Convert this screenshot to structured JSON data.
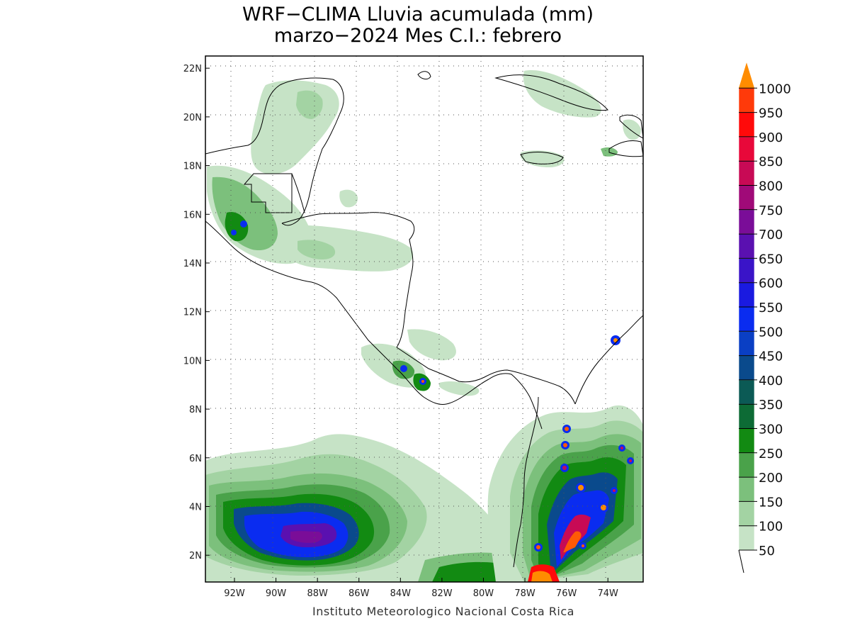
{
  "title_line1": "WRF−CLIMA Lluvia acumulada (mm)",
  "title_line2": "marzo−2024 Mes C.I.: febrero",
  "credit": "Instituto Meteorologico Nacional Costa Rica",
  "map": {
    "lon_range": [
      -93.4,
      -72.3
    ],
    "lat_range": [
      0.9,
      22.5
    ],
    "lon_ticks": [
      "92W",
      "90W",
      "88W",
      "86W",
      "84W",
      "82W",
      "80W",
      "78W",
      "76W",
      "74W"
    ],
    "lat_ticks": [
      "2N",
      "4N",
      "6N",
      "8N",
      "10N",
      "12N",
      "14N",
      "16N",
      "18N",
      "20N",
      "22N"
    ],
    "grid": "dotted"
  },
  "colorbar": {
    "levels": [
      "50",
      "100",
      "150",
      "200",
      "250",
      "300",
      "350",
      "400",
      "450",
      "500",
      "550",
      "600",
      "650",
      "700",
      "750",
      "800",
      "850",
      "900",
      "950",
      "1000"
    ],
    "colors": [
      "#c6e3c6",
      "#a3d3a3",
      "#7cc07c",
      "#4aa24a",
      "#128a12",
      "#0d6b35",
      "#0b5a55",
      "#0a4a8c",
      "#0a3fc4",
      "#0a2cf0",
      "#1a1ae0",
      "#3a14c8",
      "#5a10b0",
      "#7a0d98",
      "#a00a78",
      "#c80a55",
      "#e8083a",
      "#ff0a0a",
      "#ff3a0a",
      "#ff5a05",
      "#ff8c00"
    ]
  }
}
